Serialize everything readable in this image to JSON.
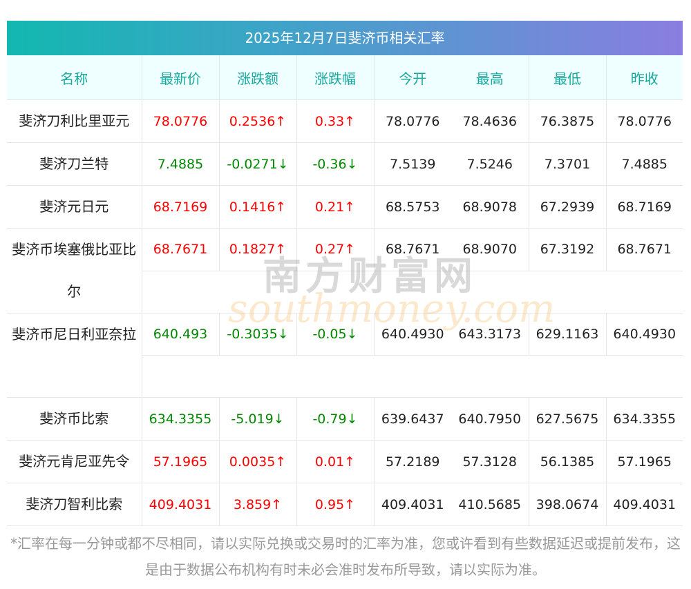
{
  "title": "2025年12月7日斐济币相关汇率",
  "headers": [
    "名称",
    "最新价",
    "涨跌额",
    "涨跌幅",
    "今开",
    "最高",
    "最低",
    "昨收"
  ],
  "rows": [
    {
      "name": "斐济刀利比里亚元",
      "dir": "up",
      "latest": "78.0776",
      "change": "0.2536↑",
      "pct": "0.33↑",
      "open": "78.0776",
      "high": "78.4636",
      "low": "76.3875",
      "prev": "78.0776"
    },
    {
      "name": "斐济刀兰特",
      "dir": "down",
      "latest": "7.4885",
      "change": "-0.0271↓",
      "pct": "-0.36↓",
      "open": "7.5139",
      "high": "7.5246",
      "low": "7.3701",
      "prev": "7.4885"
    },
    {
      "name": "斐济元日元",
      "dir": "up",
      "latest": "68.7169",
      "change": "0.1416↑",
      "pct": "0.21↑",
      "open": "68.5753",
      "high": "68.9078",
      "low": "67.2939",
      "prev": "68.7169"
    },
    {
      "name": "斐济币埃塞俄比亚比尔",
      "dir": "up",
      "latest": "68.7671",
      "change": "0.1827↑",
      "pct": "0.27↑",
      "open": "68.7671",
      "high": "68.9070",
      "low": "67.3192",
      "prev": "68.7671"
    },
    {
      "name": "斐济币尼日利亚奈拉",
      "dir": "down",
      "latest": "640.493",
      "change": "-0.3035↓",
      "pct": "-0.05↓",
      "open": "640.4930",
      "high": "643.3173",
      "low": "629.1163",
      "prev": "640.4930"
    },
    {
      "name": "斐济币比索",
      "dir": "down",
      "latest": "634.3355",
      "change": "-5.019↓",
      "pct": "-0.79↓",
      "open": "639.6437",
      "high": "640.7950",
      "low": "627.5675",
      "prev": "634.3355"
    },
    {
      "name": "斐济元肯尼亚先令",
      "dir": "up",
      "latest": "57.1965",
      "change": "0.0035↑",
      "pct": "0.01↑",
      "open": "57.2189",
      "high": "57.3128",
      "low": "56.1385",
      "prev": "57.1965"
    },
    {
      "name": "斐济刀智利比索",
      "dir": "up",
      "latest": "409.4031",
      "change": "3.859↑",
      "pct": "0.95↑",
      "open": "409.4031",
      "high": "410.5685",
      "low": "398.0674",
      "prev": "409.4031"
    }
  ],
  "watermark": {
    "cn": "南方财富网",
    "en": "southmoney.com"
  },
  "note": "*汇率在每一分钟或都不尽相同，请以实际兑换或交易时的汇率为准，您或许看到有些数据延迟或提前发布，这是由于数据公布机构有时未必会准时发布所导致，请以实际为准。",
  "colors": {
    "up": "#ff0000",
    "down": "#008800",
    "header_text": "#17a89d"
  }
}
